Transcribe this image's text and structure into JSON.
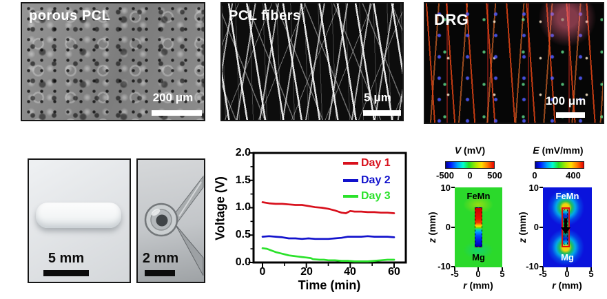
{
  "figure": {
    "top_row": {
      "porous_pcl": {
        "label": "porous PCL",
        "scalebar": "200 μm"
      },
      "pcl_fibers": {
        "label": "PCL fibers",
        "scalebar": "5 μm"
      },
      "drg": {
        "label": "DRG",
        "scalebar": "100 μm"
      }
    },
    "bottom_row": {
      "scaffold_photo": {
        "scalebar": "5 mm"
      },
      "cross_section_photo": {
        "scalebar": "2 mm"
      }
    }
  },
  "chart_data": {
    "type": "line",
    "title": "",
    "xlabel": "Time (min)",
    "ylabel": "Voltage (V)",
    "xlim": [
      -4,
      65
    ],
    "ylim": [
      0,
      2.0
    ],
    "xticks": [
      "0",
      "20",
      "40",
      "60"
    ],
    "yticks": [
      "2.0",
      "1.5",
      "1.0",
      "0.5",
      "0.0"
    ],
    "grid": false,
    "legend_position": "top-right-inside",
    "series": [
      {
        "name": "Day 1",
        "color": "#d8101c",
        "points": [
          [
            0,
            1.1
          ],
          [
            3,
            1.08
          ],
          [
            6,
            1.07
          ],
          [
            9,
            1.07
          ],
          [
            12,
            1.06
          ],
          [
            15,
            1.05
          ],
          [
            18,
            1.05
          ],
          [
            21,
            1.03
          ],
          [
            24,
            1.01
          ],
          [
            27,
            1.0
          ],
          [
            30,
            0.98
          ],
          [
            33,
            0.95
          ],
          [
            36,
            0.91
          ],
          [
            38,
            0.9
          ],
          [
            40,
            0.94
          ],
          [
            42,
            0.93
          ],
          [
            45,
            0.93
          ],
          [
            48,
            0.92
          ],
          [
            51,
            0.92
          ],
          [
            54,
            0.91
          ],
          [
            57,
            0.91
          ],
          [
            60,
            0.9
          ]
        ]
      },
      {
        "name": "Day 2",
        "color": "#1212cc",
        "points": [
          [
            0,
            0.47
          ],
          [
            3,
            0.48
          ],
          [
            6,
            0.47
          ],
          [
            9,
            0.46
          ],
          [
            12,
            0.44
          ],
          [
            15,
            0.44
          ],
          [
            18,
            0.43
          ],
          [
            21,
            0.44
          ],
          [
            24,
            0.43
          ],
          [
            27,
            0.43
          ],
          [
            30,
            0.43
          ],
          [
            33,
            0.44
          ],
          [
            36,
            0.45
          ],
          [
            39,
            0.47
          ],
          [
            42,
            0.47
          ],
          [
            45,
            0.47
          ],
          [
            48,
            0.48
          ],
          [
            51,
            0.47
          ],
          [
            54,
            0.47
          ],
          [
            57,
            0.47
          ],
          [
            60,
            0.46
          ]
        ]
      },
      {
        "name": "Day 3",
        "color": "#2be22b",
        "points": [
          [
            0,
            0.26
          ],
          [
            2,
            0.25
          ],
          [
            4,
            0.22
          ],
          [
            6,
            0.19
          ],
          [
            8,
            0.17
          ],
          [
            10,
            0.15
          ],
          [
            12,
            0.13
          ],
          [
            14,
            0.12
          ],
          [
            16,
            0.11
          ],
          [
            18,
            0.1
          ],
          [
            20,
            0.09
          ],
          [
            22,
            0.08
          ],
          [
            23,
            0.06
          ],
          [
            26,
            0.05
          ],
          [
            28,
            0.05
          ],
          [
            30,
            0.04
          ],
          [
            33,
            0.04
          ],
          [
            36,
            0.03
          ],
          [
            39,
            0.03
          ],
          [
            42,
            0.02
          ],
          [
            45,
            0.02
          ],
          [
            48,
            0.02
          ],
          [
            51,
            0.03
          ],
          [
            54,
            0.04
          ],
          [
            57,
            0.05
          ],
          [
            60,
            0.05
          ]
        ]
      }
    ]
  },
  "maps": {
    "voltage": {
      "type": "heatmap",
      "title_symbol": "V",
      "title_unit": " (mV)",
      "colorbar_labels": [
        "-500",
        "0",
        "500"
      ],
      "colorbar_range": [
        -500,
        500
      ],
      "electrode_top": "FeMn",
      "electrode_bottom": "Mg",
      "ylabel_symbol": "z",
      "ylabel_unit": " (mm)",
      "xlabel_symbol": "r",
      "xlabel_unit": " (mm)",
      "yticks": [
        "10",
        "0",
        "-10"
      ],
      "xticks": [
        "-5",
        "0",
        "5"
      ]
    },
    "efield": {
      "type": "heatmap",
      "title_symbol": "E",
      "title_unit": " (mV/mm)",
      "colorbar_labels": [
        "0",
        "400"
      ],
      "colorbar_range": [
        0,
        400
      ],
      "electrode_top": "FeMn",
      "electrode_bottom": "Mg",
      "ylabel_symbol": "z",
      "ylabel_unit": " (mm)",
      "xlabel_symbol": "r",
      "xlabel_unit": " (mm)",
      "yticks": [
        "10",
        "0",
        "-10"
      ],
      "xticks": [
        "-5",
        "0",
        "5"
      ]
    }
  },
  "colors": {
    "day1": "#d8101c",
    "day2": "#1212cc",
    "day3": "#2be32b",
    "vmap_background": "#2bd92b",
    "emap_background": "#0a13dc",
    "jet_colormap": [
      "#00008f",
      "#0018ff",
      "#00a0ff",
      "#00ffd0",
      "#22e022",
      "#ffe000",
      "#ff8000",
      "#e80000"
    ]
  }
}
